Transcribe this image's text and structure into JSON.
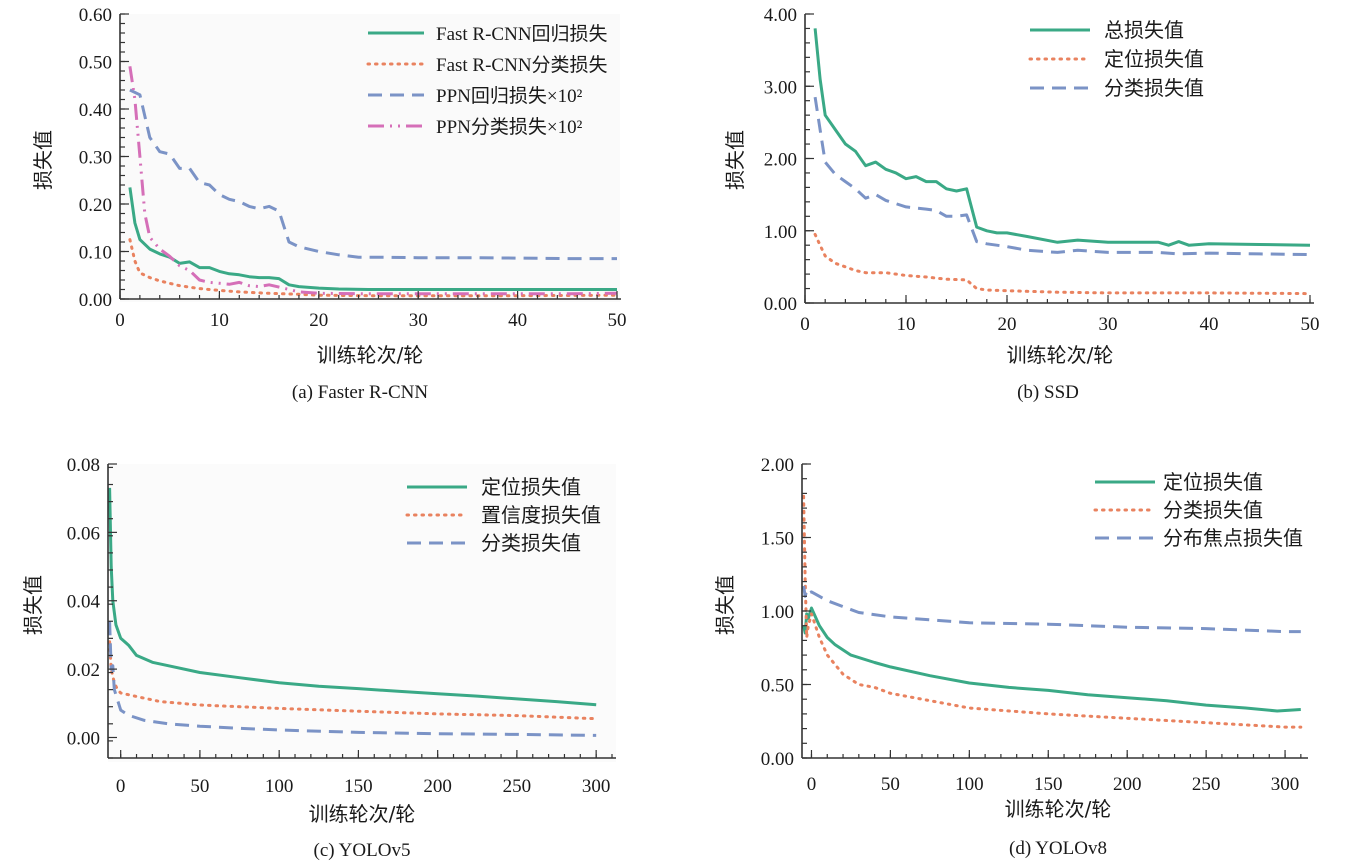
{
  "colors": {
    "green": "#3aa986",
    "orange": "#e9825f",
    "blue": "#7b93c6",
    "pink": "#d56fb8",
    "axis": "#333333",
    "text": "#1a1a1a"
  },
  "chart_data": [
    {
      "id": "a",
      "type": "line",
      "caption": "(a) Faster R-CNN",
      "xlabel": "训练轮次/轮",
      "ylabel": "损失值",
      "xlim": [
        0,
        50
      ],
      "ylim": [
        0,
        0.6
      ],
      "xticks": [
        0,
        10,
        20,
        30,
        40,
        50
      ],
      "yticks": [
        0,
        0.1,
        0.2,
        0.3,
        0.4,
        0.5,
        0.6
      ],
      "ytick_labels": [
        "0.00",
        "0.10",
        "0.20",
        "0.30",
        "0.40",
        "0.50",
        "0.60"
      ],
      "grid": false,
      "legend": "top-right",
      "series": [
        {
          "name": "Fast R-CNN回归损失",
          "style": "solid",
          "color": "green",
          "x": [
            1,
            1.5,
            2,
            3,
            4,
            5,
            6,
            7,
            8,
            9,
            10,
            11,
            12,
            13,
            14,
            15,
            16,
            17,
            18,
            20,
            22,
            25,
            30,
            35,
            40,
            45,
            50
          ],
          "y": [
            0.235,
            0.16,
            0.125,
            0.105,
            0.095,
            0.088,
            0.075,
            0.078,
            0.066,
            0.066,
            0.058,
            0.053,
            0.051,
            0.047,
            0.045,
            0.045,
            0.043,
            0.03,
            0.026,
            0.023,
            0.021,
            0.02,
            0.02,
            0.02,
            0.02,
            0.02,
            0.02
          ]
        },
        {
          "name": "Fast R-CNN分类损失",
          "style": "dotted",
          "color": "orange",
          "x": [
            1,
            1.5,
            2,
            3,
            4,
            6,
            8,
            10,
            12,
            15,
            18,
            20,
            25,
            30,
            40,
            50
          ],
          "y": [
            0.125,
            0.08,
            0.055,
            0.045,
            0.038,
            0.028,
            0.022,
            0.018,
            0.015,
            0.012,
            0.01,
            0.008,
            0.007,
            0.007,
            0.007,
            0.008
          ]
        },
        {
          "name": "PPN回归损失×10²",
          "style": "dashed",
          "color": "blue",
          "x": [
            1,
            2,
            3,
            4,
            5,
            6,
            7,
            8,
            9,
            10,
            11,
            12,
            13,
            14,
            15,
            16,
            17,
            18,
            20,
            22,
            24,
            26,
            30,
            35,
            40,
            45,
            50
          ],
          "y": [
            0.44,
            0.43,
            0.34,
            0.31,
            0.305,
            0.275,
            0.275,
            0.245,
            0.24,
            0.22,
            0.21,
            0.205,
            0.195,
            0.19,
            0.195,
            0.185,
            0.12,
            0.11,
            0.1,
            0.093,
            0.088,
            0.088,
            0.087,
            0.087,
            0.086,
            0.085,
            0.085
          ]
        },
        {
          "name": "PPN分类损失×10²",
          "style": "dashdot",
          "color": "pink",
          "x": [
            1,
            1.5,
            2,
            2.5,
            3,
            4,
            5,
            6,
            7,
            8,
            9,
            10,
            11,
            12,
            13,
            14,
            15,
            16,
            17,
            18,
            20,
            25,
            30,
            35,
            40,
            45,
            50
          ],
          "y": [
            0.49,
            0.42,
            0.3,
            0.18,
            0.13,
            0.105,
            0.09,
            0.07,
            0.06,
            0.04,
            0.035,
            0.033,
            0.031,
            0.035,
            0.028,
            0.026,
            0.03,
            0.025,
            0.02,
            0.015,
            0.012,
            0.011,
            0.011,
            0.011,
            0.011,
            0.011,
            0.012
          ]
        }
      ]
    },
    {
      "id": "b",
      "type": "line",
      "caption": "(b) SSD",
      "xlabel": "训练轮次/轮",
      "ylabel": "损失值",
      "xlim": [
        0,
        50
      ],
      "ylim": [
        0,
        4
      ],
      "xticks": [
        0,
        10,
        20,
        30,
        40,
        50
      ],
      "yticks": [
        0,
        1,
        2,
        3,
        4
      ],
      "ytick_labels": [
        "0.00",
        "1.00",
        "2.00",
        "3.00",
        "4.00"
      ],
      "grid": false,
      "legend": "top-right",
      "series": [
        {
          "name": "总损失值",
          "style": "solid",
          "color": "green",
          "x": [
            1,
            1.5,
            2,
            3,
            4,
            5,
            6,
            7,
            8,
            9,
            10,
            11,
            12,
            13,
            14,
            15,
            16,
            17,
            18,
            19,
            20,
            22,
            25,
            27,
            30,
            35,
            36,
            37,
            38,
            40,
            45,
            50
          ],
          "y": [
            3.8,
            3.1,
            2.6,
            2.4,
            2.2,
            2.1,
            1.9,
            1.95,
            1.85,
            1.8,
            1.72,
            1.75,
            1.68,
            1.68,
            1.58,
            1.55,
            1.58,
            1.05,
            1.0,
            0.97,
            0.97,
            0.92,
            0.84,
            0.87,
            0.84,
            0.84,
            0.8,
            0.85,
            0.8,
            0.82,
            0.81,
            0.8
          ]
        },
        {
          "name": "定位损失值",
          "style": "dotted",
          "color": "orange",
          "x": [
            1,
            1.5,
            2,
            3,
            4,
            5,
            6,
            8,
            10,
            12,
            14,
            16,
            17,
            18,
            20,
            25,
            30,
            40,
            50
          ],
          "y": [
            0.95,
            0.8,
            0.65,
            0.55,
            0.5,
            0.45,
            0.42,
            0.42,
            0.38,
            0.36,
            0.33,
            0.32,
            0.2,
            0.18,
            0.17,
            0.15,
            0.14,
            0.14,
            0.13
          ]
        },
        {
          "name": "分类损失值",
          "style": "dashed",
          "color": "blue",
          "x": [
            1,
            1.5,
            2,
            3,
            4,
            5,
            6,
            7,
            8,
            10,
            12,
            13,
            14,
            15,
            16,
            17,
            18,
            20,
            22,
            25,
            27,
            30,
            35,
            37,
            40,
            45,
            50
          ],
          "y": [
            2.85,
            2.4,
            1.95,
            1.78,
            1.68,
            1.58,
            1.45,
            1.5,
            1.42,
            1.33,
            1.3,
            1.28,
            1.2,
            1.2,
            1.22,
            0.85,
            0.82,
            0.78,
            0.73,
            0.7,
            0.73,
            0.7,
            0.7,
            0.68,
            0.69,
            0.68,
            0.67
          ]
        }
      ]
    },
    {
      "id": "c",
      "type": "line",
      "caption": "(c) YOLOv5",
      "xlabel": "训练轮次/轮",
      "ylabel": "损失值",
      "xlim": [
        -8,
        310
      ],
      "ylim": [
        -0.006,
        0.08
      ],
      "xticks": [
        0,
        50,
        100,
        150,
        200,
        250,
        300
      ],
      "yticks": [
        0,
        0.02,
        0.04,
        0.06,
        0.08
      ],
      "ytick_labels": [
        "0.00",
        "0.02",
        "0.04",
        "0.06",
        "0.08"
      ],
      "grid": false,
      "legend": "top-right",
      "series": [
        {
          "name": "定位损失值",
          "style": "solid",
          "color": "green",
          "x": [
            -7,
            -6,
            -5,
            -3,
            0,
            5,
            10,
            20,
            30,
            50,
            75,
            100,
            125,
            150,
            175,
            200,
            225,
            250,
            275,
            300
          ],
          "y": [
            0.073,
            0.05,
            0.04,
            0.033,
            0.029,
            0.027,
            0.024,
            0.022,
            0.021,
            0.019,
            0.0175,
            0.016,
            0.015,
            0.0143,
            0.0135,
            0.0128,
            0.0121,
            0.0113,
            0.0105,
            0.0096
          ]
        },
        {
          "name": "置信度损失值",
          "style": "dotted",
          "color": "orange",
          "x": [
            -7,
            -6,
            -4,
            -2,
            0,
            10,
            25,
            50,
            100,
            150,
            200,
            250,
            300
          ],
          "y": [
            0.028,
            0.02,
            0.016,
            0.014,
            0.013,
            0.012,
            0.0105,
            0.0095,
            0.0085,
            0.0077,
            0.0069,
            0.0064,
            0.0055
          ]
        },
        {
          "name": "分类损失值",
          "style": "dashed",
          "color": "blue",
          "x": [
            -7,
            -6,
            -5,
            -4,
            -2,
            0,
            5,
            15,
            30,
            50,
            75,
            100,
            150,
            200,
            250,
            300
          ],
          "y": [
            0.034,
            0.02,
            0.021,
            0.014,
            0.011,
            0.008,
            0.0065,
            0.005,
            0.004,
            0.0033,
            0.0027,
            0.0022,
            0.0015,
            0.0011,
            0.0009,
            0.0006
          ]
        }
      ]
    },
    {
      "id": "d",
      "type": "line",
      "caption": "(d) YOLOv8",
      "xlabel": "训练轮次/轮",
      "ylabel": "损失值",
      "xlim": [
        -6,
        312
      ],
      "ylim": [
        0,
        2
      ],
      "xticks": [
        0,
        50,
        100,
        150,
        200,
        250,
        300
      ],
      "yticks": [
        0,
        0.5,
        1,
        1.5,
        2
      ],
      "ytick_labels": [
        "0.00",
        "0.50",
        "1.00",
        "1.50",
        "2.00"
      ],
      "grid": false,
      "legend": "top-right",
      "series": [
        {
          "name": "定位损失值",
          "style": "solid",
          "color": "green",
          "x": [
            -5,
            -4,
            -3,
            -2,
            0,
            5,
            10,
            15,
            25,
            40,
            50,
            75,
            100,
            125,
            150,
            175,
            200,
            225,
            250,
            275,
            295,
            310
          ],
          "y": [
            0.9,
            0.85,
            0.98,
            0.95,
            1.02,
            0.9,
            0.82,
            0.77,
            0.7,
            0.65,
            0.62,
            0.56,
            0.51,
            0.48,
            0.46,
            0.43,
            0.41,
            0.39,
            0.36,
            0.34,
            0.32,
            0.33
          ]
        },
        {
          "name": "分类损失值",
          "style": "dotted",
          "color": "orange",
          "x": [
            -5,
            -4,
            -3,
            -2,
            0,
            5,
            10,
            20,
            30,
            40,
            50,
            75,
            100,
            150,
            200,
            250,
            300,
            310
          ],
          "y": [
            1.78,
            1.2,
            0.82,
            0.9,
            0.98,
            0.82,
            0.7,
            0.57,
            0.5,
            0.48,
            0.44,
            0.39,
            0.34,
            0.3,
            0.27,
            0.24,
            0.21,
            0.21
          ]
        },
        {
          "name": "分布焦点损失值",
          "style": "dashed",
          "color": "blue",
          "x": [
            -5,
            -4,
            -3,
            -2,
            0,
            5,
            10,
            20,
            30,
            50,
            75,
            100,
            150,
            200,
            250,
            300,
            310
          ],
          "y": [
            1.17,
            1.1,
            1.14,
            1.12,
            1.13,
            1.1,
            1.07,
            1.03,
            0.99,
            0.96,
            0.94,
            0.92,
            0.91,
            0.89,
            0.88,
            0.86,
            0.86
          ]
        }
      ]
    }
  ]
}
